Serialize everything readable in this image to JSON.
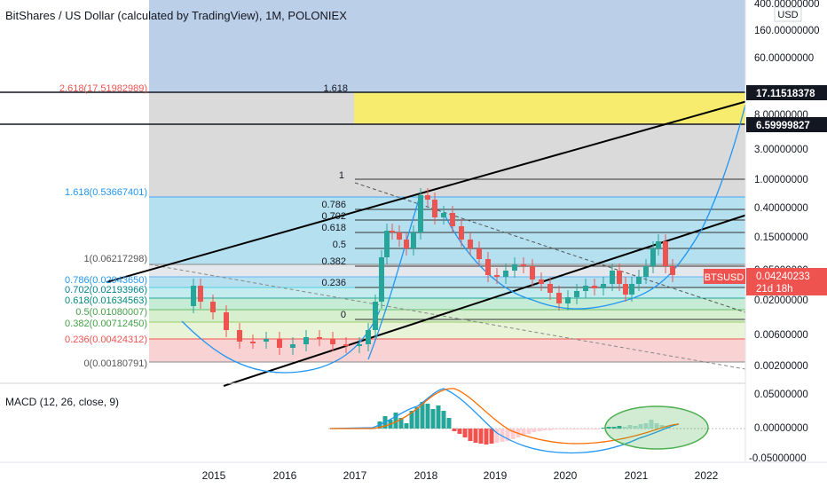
{
  "header": {
    "title": "BitShares / US Dollar (calculated by TradingView), 1M, POLONIEX"
  },
  "macd": {
    "label": "MACD (12, 26, close, 9)"
  },
  "price_axis": {
    "unit": "USD",
    "ticks": [
      "400.00000000",
      "160.00000000",
      "60.00000000",
      "8.00000000",
      "3.00000000",
      "1.00000000",
      "0.40000000",
      "0.15000000",
      "0.05000000",
      "0.02000000",
      "0.00600000",
      "0.00200000"
    ],
    "macd_ticks": [
      "0.05000000",
      "0.00000000",
      "-0.05000000"
    ]
  },
  "badges": {
    "level_top": "17.11518378",
    "level_mid": "6.59999827",
    "symbol": "BTSUSD",
    "last_price": "0.04240233",
    "countdown": "21d 18h"
  },
  "fib_left": {
    "ext": "2.618(17.51982989)",
    "f1618": "1.618(0.53667401)",
    "f1": "1(0.06217298)",
    "f0786": "0.786(0.02943650)",
    "f0702": "0.702(0.02193966)",
    "f0618": "0.618(0.01634563)",
    "f05": "0.5(0.01080007)",
    "f0382": "0.382(0.00712450)",
    "f0236": "0.236(0.00424312)",
    "f0": "0(0.00180791)"
  },
  "fib_right": {
    "f1618": "1.618",
    "f1": "1",
    "f0786": "0.786",
    "f0702": "0.702",
    "f0618": "0.618",
    "f05": "0.5",
    "f0382": "0.382",
    "f0236": "0.236",
    "f0": "0"
  },
  "colors": {
    "up": "#26a69a",
    "down": "#ef5350",
    "blue_curve": "#2196f3",
    "macd_line": "#2196f3",
    "signal_line": "#ff6d00",
    "highlight_ellipse": "#4caf50",
    "yellow_zone": "#f7ec6e"
  },
  "chart_data": {
    "type": "candlestick",
    "title": "BitShares / US Dollar (calculated by TradingView), 1M, POLONIEX",
    "y_scale": "log",
    "x_ticks": [
      "2015",
      "2016",
      "2017",
      "2018",
      "2019",
      "2020",
      "2021",
      "2022"
    ],
    "series": [
      {
        "name": "BTSUSD",
        "type": "candlestick",
        "last": 0.04240233
      },
      {
        "name": "MACD",
        "type": "line"
      },
      {
        "name": "Signal",
        "type": "line"
      },
      {
        "name": "Histogram",
        "type": "bar"
      }
    ],
    "fib_levels_1": [
      {
        "ratio": "2.618",
        "price": 17.51982989
      },
      {
        "ratio": "1.618",
        "price": 0.53667401
      },
      {
        "ratio": "1",
        "price": 0.06217298
      },
      {
        "ratio": "0.786",
        "price": 0.0294365
      },
      {
        "ratio": "0.702",
        "price": 0.02193966
      },
      {
        "ratio": "0.618",
        "price": 0.01634563
      },
      {
        "ratio": "0.5",
        "price": 0.01080007
      },
      {
        "ratio": "0.382",
        "price": 0.0071245
      },
      {
        "ratio": "0.236",
        "price": 0.00424312
      },
      {
        "ratio": "0",
        "price": 0.00180791
      }
    ],
    "levels": [
      17.11518378,
      6.59999827
    ]
  }
}
